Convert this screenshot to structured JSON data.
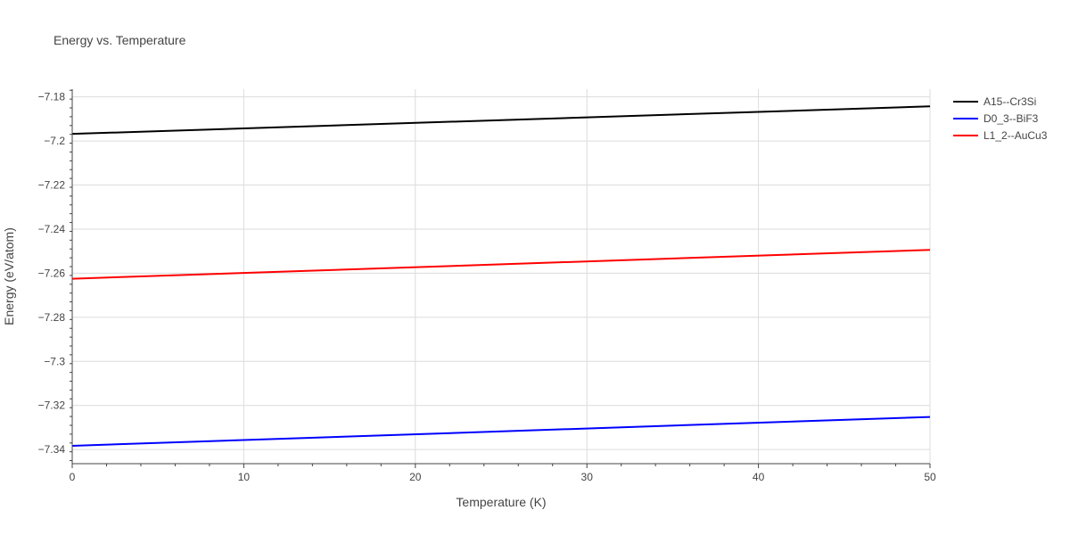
{
  "chart_data": {
    "type": "line",
    "title": "Energy vs. Temperature",
    "xlabel": "Temperature (K)",
    "ylabel": "Energy (eV/atom)",
    "xlim": [
      0,
      50
    ],
    "ylim": [
      -7.3464,
      -7.1765
    ],
    "x_ticks": [
      0,
      10,
      20,
      30,
      40,
      50
    ],
    "x_tick_labels": [
      "0",
      "10",
      "20",
      "30",
      "40",
      "50"
    ],
    "y_ticks": [
      -7.34,
      -7.32,
      -7.3,
      -7.28,
      -7.26,
      -7.24,
      -7.22,
      -7.2,
      -7.18
    ],
    "y_tick_labels": [
      "−7.34",
      "−7.32",
      "−7.3",
      "−7.28",
      "−7.26",
      "−7.24",
      "−7.22",
      "−7.2",
      "−7.18"
    ],
    "grid": true,
    "legend_position": "top-right",
    "x": [
      0,
      50
    ],
    "series": [
      {
        "name": "A15--Cr3Si",
        "color": "#000000",
        "values": [
          -7.1968,
          -7.1843
        ]
      },
      {
        "name": "D0_3--BiF3",
        "color": "#0000ff",
        "values": [
          -7.3383,
          -7.3252
        ]
      },
      {
        "name": "L1_2--AuCu3",
        "color": "#ff0000",
        "values": [
          -7.2625,
          -7.2494
        ]
      }
    ]
  }
}
